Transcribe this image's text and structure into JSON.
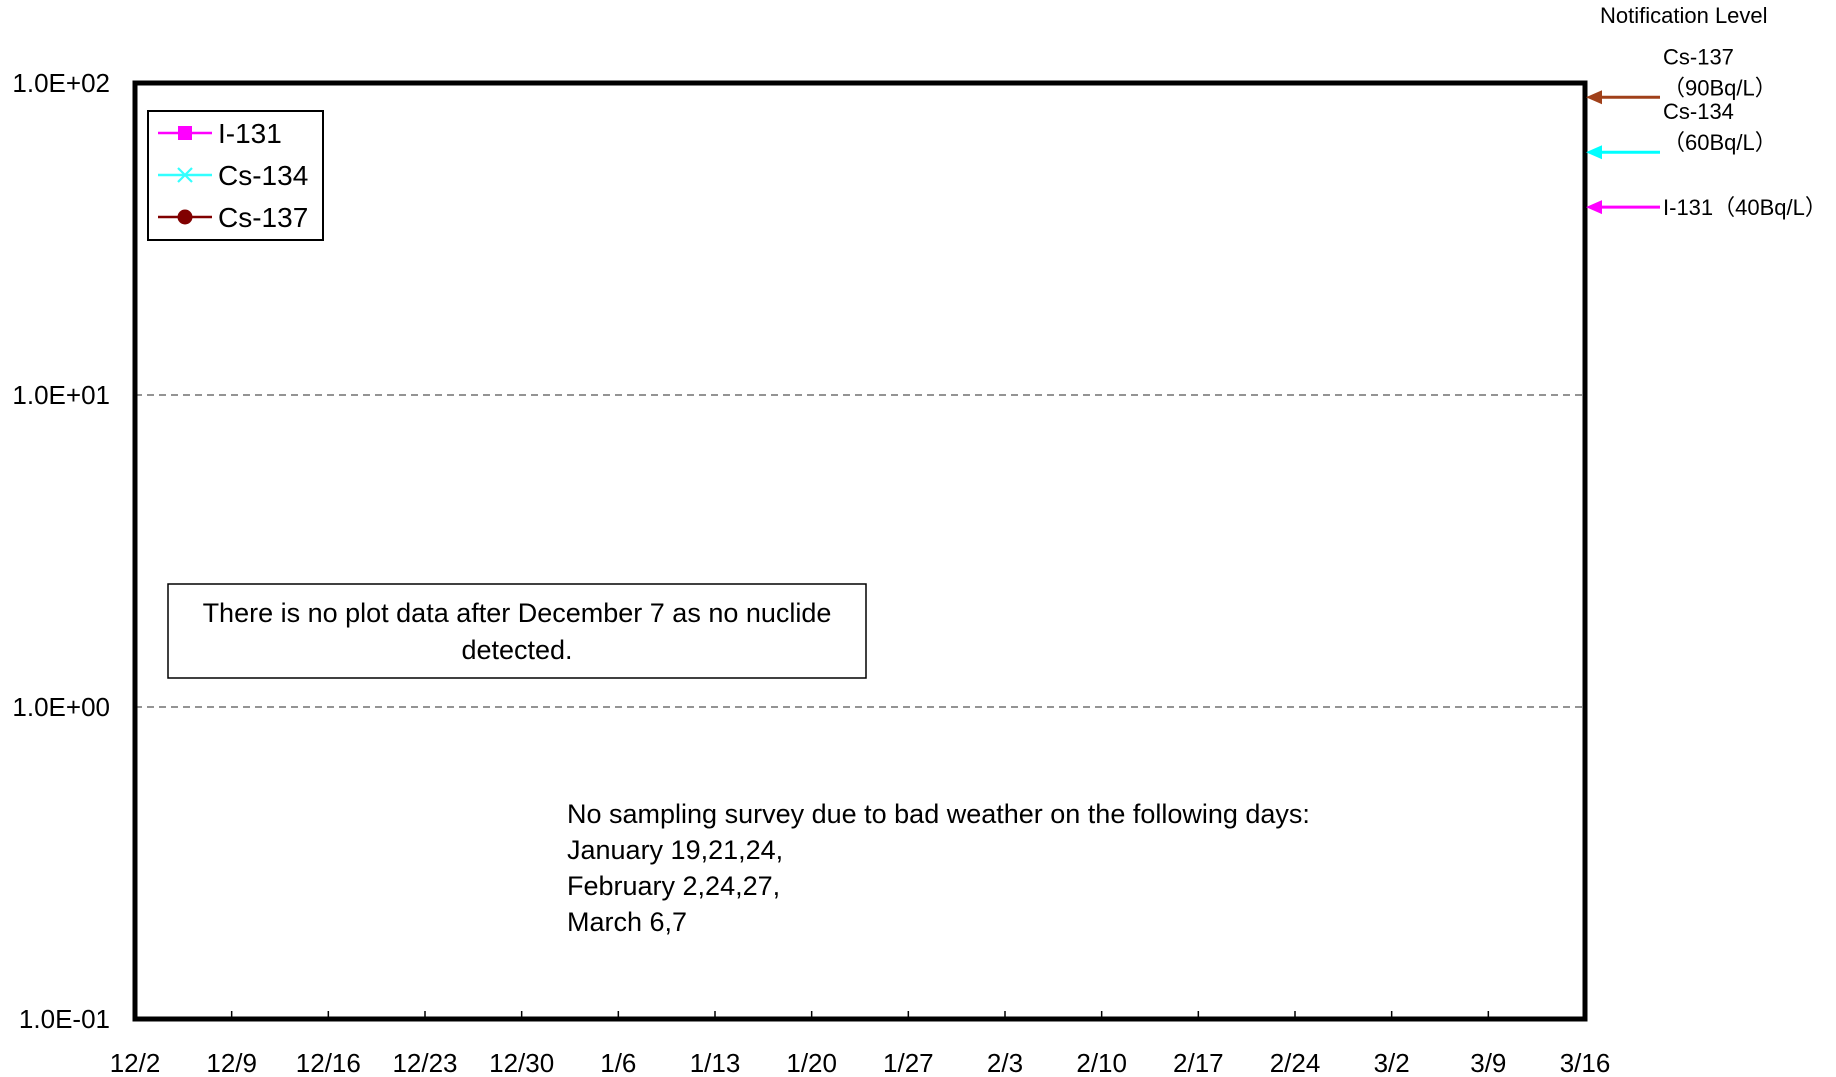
{
  "chart_data": {
    "type": "line",
    "title": "",
    "xlabel": "",
    "ylabel": "",
    "yscale": "log",
    "ylim": [
      0.1,
      100
    ],
    "y_tick_labels": [
      "1.0E+02",
      "1.0E+01",
      "1.0E+00",
      "1.0E-01"
    ],
    "x_tick_labels": [
      "12/2",
      "12/9",
      "12/16",
      "12/23",
      "12/30",
      "1/6",
      "1/13",
      "1/20",
      "1/27",
      "2/3",
      "2/10",
      "2/17",
      "2/24",
      "3/2",
      "3/9",
      "3/16"
    ],
    "grid": "horizontal dashed at 1.0E+01 and 1.0E+00",
    "legend": {
      "placement": "top-left",
      "entries": [
        {
          "name": "I-131",
          "color": "#ff00ff",
          "marker": "square"
        },
        {
          "name": "Cs-134",
          "color": "#33ffff",
          "marker": "x"
        },
        {
          "name": "Cs-137",
          "color": "#800000",
          "marker": "circle"
        }
      ]
    },
    "series": [
      {
        "name": "I-131",
        "values": []
      },
      {
        "name": "Cs-134",
        "values": []
      },
      {
        "name": "Cs-137",
        "values": []
      }
    ],
    "annotations": {
      "no_data_note": {
        "lines": [
          "There is no plot data after December 7 as no nuclide",
          "detected."
        ]
      },
      "weather_note": {
        "lines": [
          "No sampling survey due to bad weather on the following days:",
          "January 19,21,24,",
          "February 2,24,27,",
          "March 6,7"
        ]
      }
    },
    "notification_levels": {
      "title": "Notification Level",
      "items": [
        {
          "nuclide": "Cs-137",
          "value_label": "（90Bq/L）",
          "value": 90,
          "color": "#a0401a",
          "layout": "two-line"
        },
        {
          "nuclide": "Cs-134",
          "value_label": "（60Bq/L）",
          "value": 60,
          "color": "#00ffff",
          "layout": "two-line"
        },
        {
          "nuclide": "I-131",
          "value_label": "（40Bq/L）",
          "value": 40,
          "color": "#ff00ff",
          "layout": "inline"
        }
      ]
    }
  }
}
